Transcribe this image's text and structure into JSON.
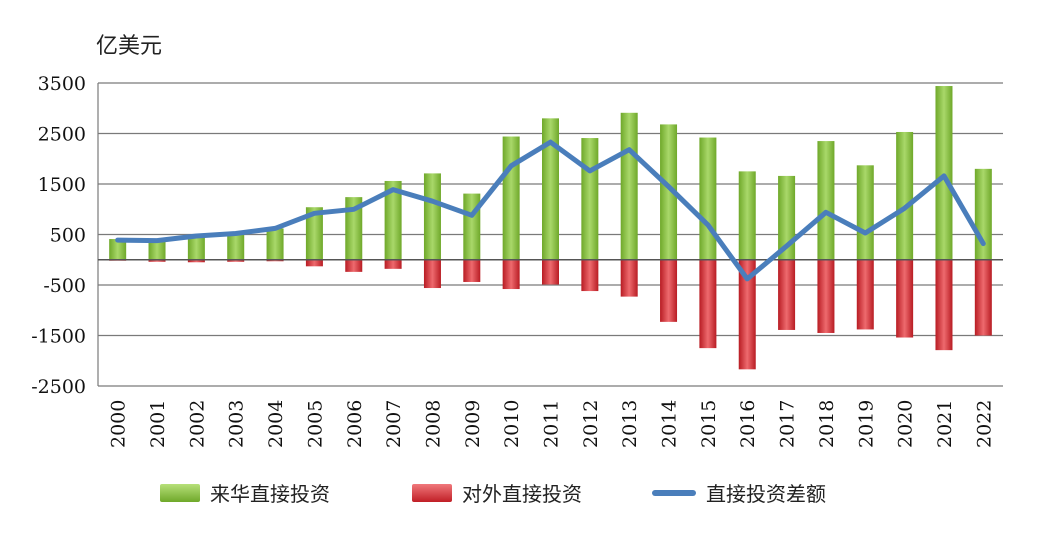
{
  "chart_data": {
    "type": "bar",
    "unit_label": "亿美元",
    "categories": [
      "2000",
      "2001",
      "2002",
      "2003",
      "2004",
      "2005",
      "2006",
      "2007",
      "2008",
      "2009",
      "2010",
      "2011",
      "2012",
      "2013",
      "2014",
      "2015",
      "2016",
      "2017",
      "2018",
      "2019",
      "2020",
      "2021",
      "2022"
    ],
    "series": [
      {
        "name": "来华直接投资",
        "type": "bar",
        "color": "#8cc63f",
        "values": [
          410,
          370,
          500,
          500,
          620,
          1040,
          1240,
          1560,
          1710,
          1310,
          2440,
          2800,
          2410,
          2910,
          2680,
          2420,
          1750,
          1660,
          2350,
          1870,
          2530,
          3440,
          1800
        ]
      },
      {
        "name": "对外直接投资",
        "type": "bar",
        "color": "#d9272e",
        "values": [
          -20,
          -40,
          -50,
          -40,
          -30,
          -130,
          -240,
          -180,
          -560,
          -440,
          -580,
          -490,
          -620,
          -730,
          -1230,
          -1750,
          -2170,
          -1390,
          -1450,
          -1380,
          -1540,
          -1790,
          -1500
        ]
      },
      {
        "name": "直接投资差额",
        "type": "line",
        "color": "#4a7ebb",
        "values": [
          390,
          380,
          470,
          520,
          620,
          920,
          1000,
          1390,
          1160,
          880,
          1860,
          2330,
          1760,
          2180,
          1450,
          690,
          -380,
          270,
          940,
          530,
          1020,
          1660,
          320
        ]
      }
    ],
    "y_ticks": [
      3500,
      2500,
      1500,
      500,
      -500,
      -1500,
      -2500
    ],
    "ylim": [
      -2500,
      3500
    ],
    "grid": true,
    "legend_position": "bottom"
  }
}
